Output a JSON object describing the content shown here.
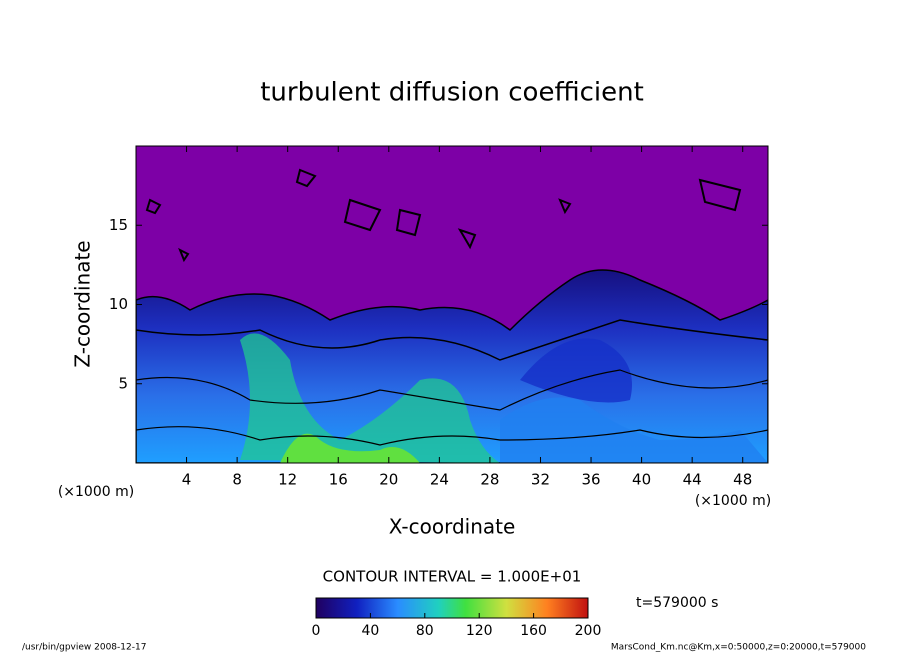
{
  "chart_data": {
    "type": "contour",
    "title": "turbulent diffusion coefficient",
    "xlabel": "X-coordinate",
    "ylabel": "Z-coordinate",
    "x_unit": "(×1000 m)",
    "xlim": [
      0,
      50
    ],
    "xticks": [
      4,
      8,
      12,
      16,
      20,
      24,
      28,
      32,
      36,
      40,
      44,
      48
    ],
    "ylim": [
      0,
      20
    ],
    "yticks": [
      5,
      10,
      15
    ],
    "contour_interval": "CONTOUR INTERVAL = 1.000E+01",
    "time": "t=579000 s",
    "clim": [
      0,
      200
    ],
    "cticks": [
      0,
      40,
      80,
      120,
      160,
      200
    ],
    "footer_left": "/usr/bin/gpview   2008-12-17",
    "footer_right": "MarsCond_Km.nc@Km,x=0:50000,z=0:20000,t=579000"
  }
}
